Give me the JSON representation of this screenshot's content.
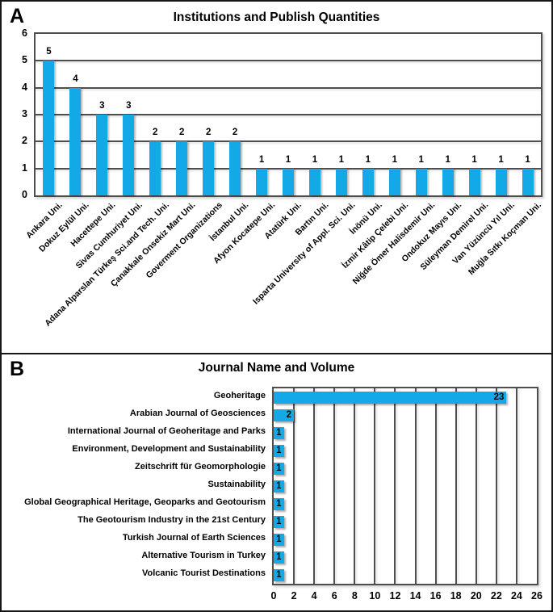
{
  "figure": {
    "panel_a": {
      "label": "A",
      "title": "Institutions and Publish Quantities"
    },
    "panel_b": {
      "label": "B",
      "title": "Journal Name and Volume"
    }
  },
  "colors": {
    "bar": "#12A9E6",
    "grid": "#4E4E4E",
    "text": "#000000"
  },
  "chart_data": [
    {
      "type": "bar",
      "orientation": "vertical",
      "title": "Institutions and Publish Quantities",
      "categories": [
        "Ankara Uni.",
        "Dokuz Eylül Uni.",
        "Hacettepe Uni.",
        "Sivas Cumhuriyet Uni.",
        "Adana Alparslan Türkeş Sci.and Tech. Uni.",
        "Çanakkale Onsekiz Mart Uni.",
        "Goverment Organizations",
        "İstanbul Uni.",
        "Afyon Kocatepe Uni.",
        "Atatürk Uni.",
        "Bartın Uni.",
        "Isparta University of Appl. Sci. Uni.",
        "İnönü Uni.",
        "İzmir Kâtip Çelebi Uni.",
        "Niğde Ömer Halisdemir Uni.",
        "Ondokuz Mayıs Uni.",
        "Süleyman Demirel Uni.",
        "Van Yüzüncü Yıl Uni.",
        "Muğla Sıtkı Koçman Uni."
      ],
      "values": [
        5,
        4,
        3,
        3,
        2,
        2,
        2,
        2,
        1,
        1,
        1,
        1,
        1,
        1,
        1,
        1,
        1,
        1,
        1
      ],
      "ylim": [
        0,
        6
      ],
      "yticks": [
        0,
        1,
        2,
        3,
        4,
        5,
        6
      ],
      "grid": "horizontal",
      "value_labels": "outside-end",
      "x_label_rotation_deg": 45,
      "legend": "none"
    },
    {
      "type": "bar",
      "orientation": "horizontal",
      "title": "Journal Name and Volume",
      "categories": [
        "Geoheritage",
        "Arabian Journal of Geosciences",
        "International Journal of Geoheritage and Parks",
        "Environment, Development and Sustainability",
        "Zeitschrift für Geomorphologie",
        "Sustainability",
        "Global Geographical Heritage, Geoparks and Geotourism",
        "The Geotourism Industry in the 21st Century",
        "Turkish Journal of Earth Sciences",
        "Alternative Tourism in Turkey",
        "Volcanic Tourist Destinations"
      ],
      "values": [
        23,
        2,
        1,
        1,
        1,
        1,
        1,
        1,
        1,
        1,
        1
      ],
      "xlim": [
        0,
        26
      ],
      "xticks": [
        0,
        2,
        4,
        6,
        8,
        10,
        12,
        14,
        16,
        18,
        20,
        22,
        24,
        26
      ],
      "grid": "vertical",
      "value_labels": "inside-end",
      "legend": "none"
    }
  ]
}
